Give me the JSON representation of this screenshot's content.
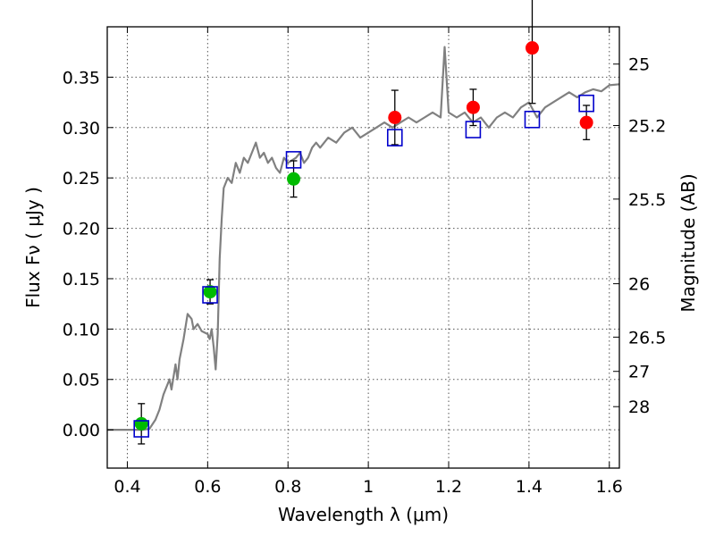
{
  "chart_data": {
    "type": "scatter",
    "xlabel": "Wavelength  λ (μm)",
    "ylabel": "Flux  Fν  ( μJy )",
    "y2label": "Magnitude (AB)",
    "xlim": [
      0.35,
      1.625
    ],
    "ylim": [
      -0.038,
      0.4
    ],
    "grid": true,
    "x_ticks": [
      {
        "value": 0.4,
        "label": "0.4"
      },
      {
        "value": 0.6,
        "label": "0.6"
      },
      {
        "value": 0.8,
        "label": "0.8"
      },
      {
        "value": 1.0,
        "label": "1"
      },
      {
        "value": 1.2,
        "label": "1.2"
      },
      {
        "value": 1.4,
        "label": "1.4"
      },
      {
        "value": 1.6,
        "label": "1.6"
      }
    ],
    "y_ticks": [
      {
        "value": 0.0,
        "label": "0.00"
      },
      {
        "value": 0.05,
        "label": "0.05"
      },
      {
        "value": 0.1,
        "label": "0.10"
      },
      {
        "value": 0.15,
        "label": "0.15"
      },
      {
        "value": 0.2,
        "label": "0.20"
      },
      {
        "value": 0.25,
        "label": "0.25"
      },
      {
        "value": 0.3,
        "label": "0.30"
      },
      {
        "value": 0.35,
        "label": "0.35"
      }
    ],
    "y2_ticks": [
      {
        "flux": 0.363,
        "label": "25"
      },
      {
        "flux": 0.302,
        "label": "25.2"
      },
      {
        "flux": 0.229,
        "label": "25.5"
      },
      {
        "flux": 0.145,
        "label": "26"
      },
      {
        "flux": 0.092,
        "label": "26.5"
      },
      {
        "flux": 0.058,
        "label": "27"
      },
      {
        "flux": 0.023,
        "label": "28"
      }
    ],
    "colors": {
      "model": "#808080",
      "green": "#00bb00",
      "red": "#ff0000",
      "square": "#0000cc",
      "errorbar": "#000000",
      "grid": "#555555"
    },
    "model_spectrum": [
      [
        0.35,
        0.0
      ],
      [
        0.44,
        0.0
      ],
      [
        0.455,
        0.001
      ],
      [
        0.47,
        0.01
      ],
      [
        0.48,
        0.02
      ],
      [
        0.49,
        0.035
      ],
      [
        0.5,
        0.045
      ],
      [
        0.505,
        0.05
      ],
      [
        0.51,
        0.04
      ],
      [
        0.52,
        0.065
      ],
      [
        0.525,
        0.05
      ],
      [
        0.53,
        0.07
      ],
      [
        0.54,
        0.09
      ],
      [
        0.55,
        0.115
      ],
      [
        0.56,
        0.11
      ],
      [
        0.565,
        0.1
      ],
      [
        0.575,
        0.105
      ],
      [
        0.585,
        0.098
      ],
      [
        0.6,
        0.095
      ],
      [
        0.605,
        0.09
      ],
      [
        0.61,
        0.1
      ],
      [
        0.615,
        0.082
      ],
      [
        0.62,
        0.06
      ],
      [
        0.625,
        0.095
      ],
      [
        0.63,
        0.17
      ],
      [
        0.635,
        0.21
      ],
      [
        0.64,
        0.24
      ],
      [
        0.65,
        0.25
      ],
      [
        0.66,
        0.245
      ],
      [
        0.67,
        0.265
      ],
      [
        0.68,
        0.255
      ],
      [
        0.69,
        0.27
      ],
      [
        0.7,
        0.265
      ],
      [
        0.71,
        0.275
      ],
      [
        0.72,
        0.285
      ],
      [
        0.73,
        0.27
      ],
      [
        0.74,
        0.275
      ],
      [
        0.75,
        0.265
      ],
      [
        0.76,
        0.27
      ],
      [
        0.77,
        0.26
      ],
      [
        0.78,
        0.255
      ],
      [
        0.79,
        0.27
      ],
      [
        0.8,
        0.265
      ],
      [
        0.82,
        0.27
      ],
      [
        0.83,
        0.275
      ],
      [
        0.84,
        0.265
      ],
      [
        0.85,
        0.27
      ],
      [
        0.86,
        0.28
      ],
      [
        0.87,
        0.285
      ],
      [
        0.88,
        0.28
      ],
      [
        0.9,
        0.29
      ],
      [
        0.92,
        0.285
      ],
      [
        0.94,
        0.295
      ],
      [
        0.96,
        0.3
      ],
      [
        0.98,
        0.29
      ],
      [
        1.0,
        0.295
      ],
      [
        1.02,
        0.3
      ],
      [
        1.04,
        0.305
      ],
      [
        1.06,
        0.3
      ],
      [
        1.08,
        0.305
      ],
      [
        1.1,
        0.31
      ],
      [
        1.12,
        0.305
      ],
      [
        1.14,
        0.31
      ],
      [
        1.16,
        0.315
      ],
      [
        1.18,
        0.31
      ],
      [
        1.19,
        0.38
      ],
      [
        1.2,
        0.315
      ],
      [
        1.22,
        0.31
      ],
      [
        1.24,
        0.315
      ],
      [
        1.26,
        0.305
      ],
      [
        1.28,
        0.31
      ],
      [
        1.3,
        0.3
      ],
      [
        1.32,
        0.31
      ],
      [
        1.34,
        0.315
      ],
      [
        1.36,
        0.31
      ],
      [
        1.38,
        0.32
      ],
      [
        1.4,
        0.325
      ],
      [
        1.42,
        0.31
      ],
      [
        1.44,
        0.32
      ],
      [
        1.46,
        0.325
      ],
      [
        1.48,
        0.33
      ],
      [
        1.5,
        0.335
      ],
      [
        1.52,
        0.33
      ],
      [
        1.54,
        0.335
      ],
      [
        1.56,
        0.338
      ],
      [
        1.58,
        0.336
      ],
      [
        1.6,
        0.342
      ],
      [
        1.625,
        0.343
      ]
    ],
    "series": [
      {
        "marker": "circle",
        "color": "green",
        "points": [
          {
            "x": 0.435,
            "y": 0.006,
            "err": 0.02
          },
          {
            "x": 0.606,
            "y": 0.137,
            "err": 0.012
          },
          {
            "x": 0.814,
            "y": 0.249,
            "err": 0.018
          }
        ]
      },
      {
        "marker": "circle",
        "color": "red",
        "points": [
          {
            "x": 1.066,
            "y": 0.31,
            "err": 0.027
          },
          {
            "x": 1.261,
            "y": 0.32,
            "err": 0.018
          },
          {
            "x": 1.408,
            "y": 0.379,
            "err": 0.055
          },
          {
            "x": 1.543,
            "y": 0.305,
            "err": 0.017
          }
        ]
      },
      {
        "marker": "square",
        "color": "square",
        "points": [
          {
            "x": 0.435,
            "y": 0.001
          },
          {
            "x": 0.606,
            "y": 0.134
          },
          {
            "x": 0.814,
            "y": 0.268
          },
          {
            "x": 1.066,
            "y": 0.29
          },
          {
            "x": 1.261,
            "y": 0.298
          },
          {
            "x": 1.408,
            "y": 0.308
          },
          {
            "x": 1.543,
            "y": 0.324
          }
        ]
      }
    ]
  }
}
